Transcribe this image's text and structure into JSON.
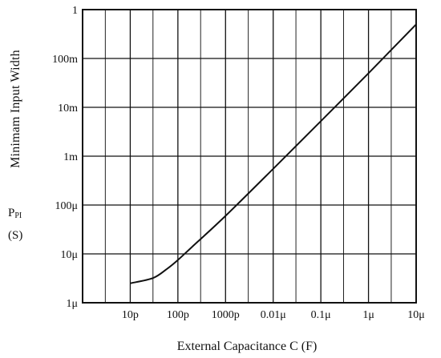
{
  "chart_data": {
    "type": "line",
    "title": "",
    "xlabel": "External Capacitance C (F)",
    "ylabel": "Minimam Input Width",
    "ysymbol": "P",
    "ysymbol_sub": "PI",
    "yunit": "(S)",
    "xscale": "log",
    "yscale": "log",
    "xlim": [
      1e-12,
      1e-05
    ],
    "ylim": [
      1e-06,
      1
    ],
    "grid": true,
    "legend": "none",
    "x_ticks": [
      {
        "value": 1e-11,
        "label": "10p"
      },
      {
        "value": 1e-10,
        "label": "100p"
      },
      {
        "value": 1e-09,
        "label": "1000p"
      },
      {
        "value": 1e-08,
        "label": "0.01μ"
      },
      {
        "value": 1e-07,
        "label": "0.1μ"
      },
      {
        "value": 1e-06,
        "label": "1μ"
      },
      {
        "value": 1e-05,
        "label": "10μ"
      }
    ],
    "y_ticks": [
      {
        "value": 1e-06,
        "label": "1μ"
      },
      {
        "value": 1e-05,
        "label": "10μ"
      },
      {
        "value": 0.0001,
        "label": "100μ"
      },
      {
        "value": 0.001,
        "label": "1m"
      },
      {
        "value": 0.01,
        "label": "10m"
      },
      {
        "value": 0.1,
        "label": "100m"
      },
      {
        "value": 1,
        "label": "1"
      }
    ],
    "series": [
      {
        "color": "#111111",
        "points": [
          {
            "x": 1e-11,
            "y": 2.5e-06
          },
          {
            "x": 3e-11,
            "y": 3.2e-06
          },
          {
            "x": 6e-11,
            "y": 5e-06
          },
          {
            "x": 1e-10,
            "y": 7.5e-06
          },
          {
            "x": 2e-10,
            "y": 1.4e-05
          },
          {
            "x": 1e-09,
            "y": 6e-05
          },
          {
            "x": 1e-08,
            "y": 0.00055
          },
          {
            "x": 1e-07,
            "y": 0.0052
          },
          {
            "x": 1e-06,
            "y": 0.05
          },
          {
            "x": 1e-05,
            "y": 0.5
          }
        ]
      }
    ]
  }
}
